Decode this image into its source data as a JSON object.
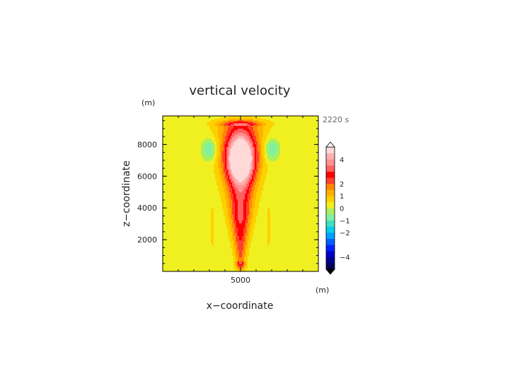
{
  "chart_data": {
    "type": "heatmap",
    "title": "vertical velocity",
    "xlabel": "x−coordinate",
    "ylabel": "z−coordinate",
    "x_unit": "(m)",
    "y_unit": "(m)",
    "time_label": "2220 s",
    "xlim": [
      0,
      10000
    ],
    "ylim": [
      0,
      9800
    ],
    "x_ticks": [
      {
        "value": 5000,
        "label": "5000"
      }
    ],
    "y_ticks": [
      {
        "value": 2000,
        "label": "2000"
      },
      {
        "value": 4000,
        "label": "4000"
      },
      {
        "value": 6000,
        "label": "6000"
      },
      {
        "value": 8000,
        "label": "8000"
      }
    ],
    "grid": false,
    "background_value": 0.25,
    "contour_levels": [
      -5,
      -4.5,
      -4,
      -3.5,
      -3,
      -2.5,
      -2,
      -1.5,
      -1,
      -0.5,
      0,
      0.5,
      1,
      1.5,
      2,
      2.5,
      3,
      3.5,
      4,
      4.5,
      5
    ],
    "colorbar": {
      "range": [
        -5,
        5
      ],
      "colors": [
        "#00005a",
        "#000090",
        "#0000c8",
        "#0020ff",
        "#0060ff",
        "#00a0ff",
        "#00d0e8",
        "#40e0c0",
        "#80f0a0",
        "#a8f060",
        "#f0f020",
        "#ffd000",
        "#ffb000",
        "#ff8800",
        "#ff4030",
        "#ff0000",
        "#ff6060",
        "#ff9090",
        "#ffb0b0",
        "#ffd8d8"
      ],
      "tick_labels": [
        {
          "value": 4,
          "label": "4"
        },
        {
          "value": 2,
          "label": "2"
        },
        {
          "value": 1,
          "label": "1"
        },
        {
          "value": 0,
          "label": "0"
        },
        {
          "value": -1,
          "label": "−1"
        },
        {
          "value": -2,
          "label": "−2"
        },
        {
          "value": -4,
          "label": "−4"
        }
      ]
    },
    "features": [
      {
        "kind": "updraft_core",
        "x": 5000,
        "z": 7100,
        "sx": 900,
        "sz": 1400,
        "amp": 4.8
      },
      {
        "kind": "updraft_column",
        "x": 5000,
        "z_range": [
          600,
          9200
        ],
        "peak_z": 3500,
        "half_width_bottom": 300,
        "half_width_top": 1400,
        "amp": 3.0
      },
      {
        "kind": "downdraft",
        "x": 3000,
        "z": 7700,
        "sx": 450,
        "sz": 650,
        "amp": -1.4
      },
      {
        "kind": "downdraft",
        "x": 7000,
        "z": 7700,
        "sx": 450,
        "sz": 650,
        "amp": -1.4
      },
      {
        "kind": "weak_updraft",
        "x": 3200,
        "z_range": [
          1000,
          4600
        ],
        "amp": 0.3
      },
      {
        "kind": "weak_updraft",
        "x": 6800,
        "z_range": [
          1000,
          4600
        ],
        "amp": 0.3
      }
    ]
  }
}
